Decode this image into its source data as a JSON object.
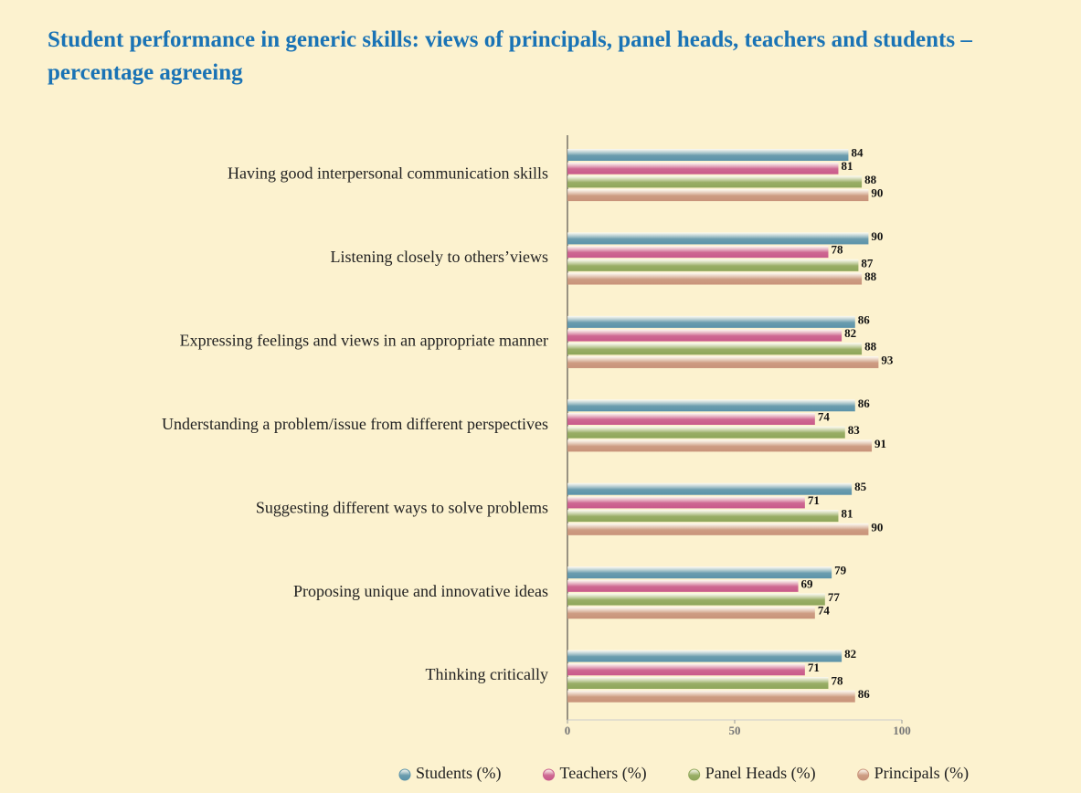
{
  "chart_data": {
    "type": "bar",
    "orientation": "horizontal",
    "title": "Student performance in generic skills: views of principals, panel heads, teachers and students – percentage agreeing",
    "categories": [
      "Having good interpersonal communication skills",
      "Listening closely to others’views",
      "Expressing feelings and views in an appropriate manner",
      "Understanding a problem/issue from different perspectives",
      "Suggesting different ways to solve problems",
      "Proposing unique and innovative ideas",
      "Thinking critically"
    ],
    "series": [
      {
        "name": "Students (%)",
        "color": "#5b93aa",
        "values": [
          84,
          90,
          86,
          86,
          85,
          79,
          82
        ]
      },
      {
        "name": "Teachers (%)",
        "color": "#c9598b",
        "values": [
          81,
          78,
          82,
          74,
          71,
          69,
          71
        ]
      },
      {
        "name": "Panel Heads (%)",
        "color": "#8ea65a",
        "values": [
          88,
          87,
          88,
          83,
          81,
          77,
          78
        ]
      },
      {
        "name": "Principals (%)",
        "color": "#c8937a",
        "values": [
          90,
          88,
          93,
          91,
          90,
          74,
          86
        ]
      }
    ],
    "xlim": [
      0,
      100
    ],
    "xticks": [
      0,
      50,
      100
    ],
    "legend": "bottom"
  }
}
